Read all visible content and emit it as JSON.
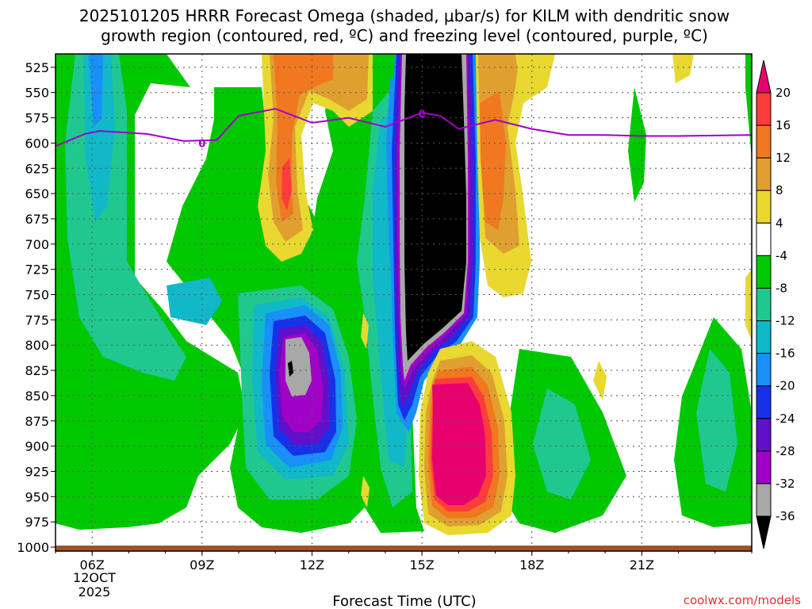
{
  "chart_data": {
    "type": "heatmap",
    "title_line1": "2025101205 HRRR Forecast Omega (shaded, μbar/s) for KILM with dendritic snow",
    "title_line2": "growth region (contoured, red, ºC) and freezing level (contoured, purple, ºC)",
    "xlabel": "Forecast Time (UTC)",
    "ylabel": "",
    "y_axis": {
      "units": "hPa",
      "range": [
        1000,
        500
      ],
      "ticks": [
        525,
        550,
        575,
        600,
        625,
        650,
        675,
        700,
        725,
        750,
        775,
        800,
        825,
        850,
        875,
        900,
        925,
        950,
        975,
        1000
      ]
    },
    "x_axis": {
      "units": "hours UTC (from 12 Oct 2025 00Z)",
      "range": [
        5,
        24
      ],
      "ticks": [
        {
          "hour": 6,
          "label": "06Z"
        },
        {
          "hour": 9,
          "label": "09Z"
        },
        {
          "hour": 12,
          "label": "12Z"
        },
        {
          "hour": 15,
          "label": "15Z"
        },
        {
          "hour": 18,
          "label": "18Z"
        },
        {
          "hour": 21,
          "label": "21Z"
        }
      ],
      "date_line1": "12OCT",
      "date_line2": "2025"
    },
    "colorbar": {
      "levels": [
        "20",
        "16",
        "12",
        "8",
        "4",
        "-4",
        "-8",
        "-12",
        "-16",
        "-20",
        "-24",
        "-28",
        "-32",
        "-36"
      ],
      "level_values": [
        20,
        16,
        12,
        8,
        4,
        -4,
        -8,
        -12,
        -16,
        -20,
        -24,
        -28,
        -32,
        -36
      ],
      "colors": [
        "#e8006e",
        "#ff3c3c",
        "#f07820",
        "#e0a030",
        "#e8d830",
        "#ffffff",
        "#00c800",
        "#20c890",
        "#10b8c8",
        "#1890f8",
        "#1830e8",
        "#6010c8",
        "#a000c8",
        "#a8a8a8",
        "#000000"
      ]
    },
    "omega_regions": [
      {
        "name": "strong-ascent-core",
        "x": [
          14.05,
          16.3
        ],
        "p": [
          495,
          800
        ],
        "max_value": -36
      },
      {
        "name": "ascent-maximum-11z",
        "x": [
          10.5,
          12.3
        ],
        "p": [
          710,
          890
        ],
        "max_value": -36
      },
      {
        "name": "subsidence-maximum-15z",
        "x": [
          14.3,
          16.5
        ],
        "p": [
          770,
          990
        ],
        "max_value": 20
      },
      {
        "name": "subsidence-11z",
        "x": [
          10.4,
          12.2
        ],
        "p": [
          495,
          680
        ],
        "max_value": 20
      },
      {
        "name": "subsidence-16z",
        "x": [
          15.8,
          17.5
        ],
        "p": [
          495,
          670
        ],
        "max_value": 16
      }
    ],
    "freezing_level": {
      "name": "0ºC",
      "label": "0",
      "points": [
        [
          5,
          603
        ],
        [
          5.8,
          591
        ],
        [
          6.2,
          588
        ],
        [
          7.5,
          591
        ],
        [
          8.5,
          598
        ],
        [
          9.4,
          597
        ],
        [
          10.0,
          573
        ],
        [
          11.0,
          566
        ],
        [
          12.0,
          580
        ],
        [
          13.0,
          575
        ],
        [
          14.0,
          584
        ],
        [
          15.0,
          570
        ],
        [
          15.5,
          573
        ],
        [
          16.0,
          586
        ],
        [
          17.0,
          577
        ],
        [
          18.0,
          586
        ],
        [
          19.0,
          592
        ],
        [
          20.0,
          592
        ],
        [
          21.0,
          593
        ],
        [
          22.0,
          593
        ],
        [
          24.0,
          592
        ]
      ]
    },
    "ground_surface_p": 997,
    "credit": "coolwx.com/models"
  }
}
